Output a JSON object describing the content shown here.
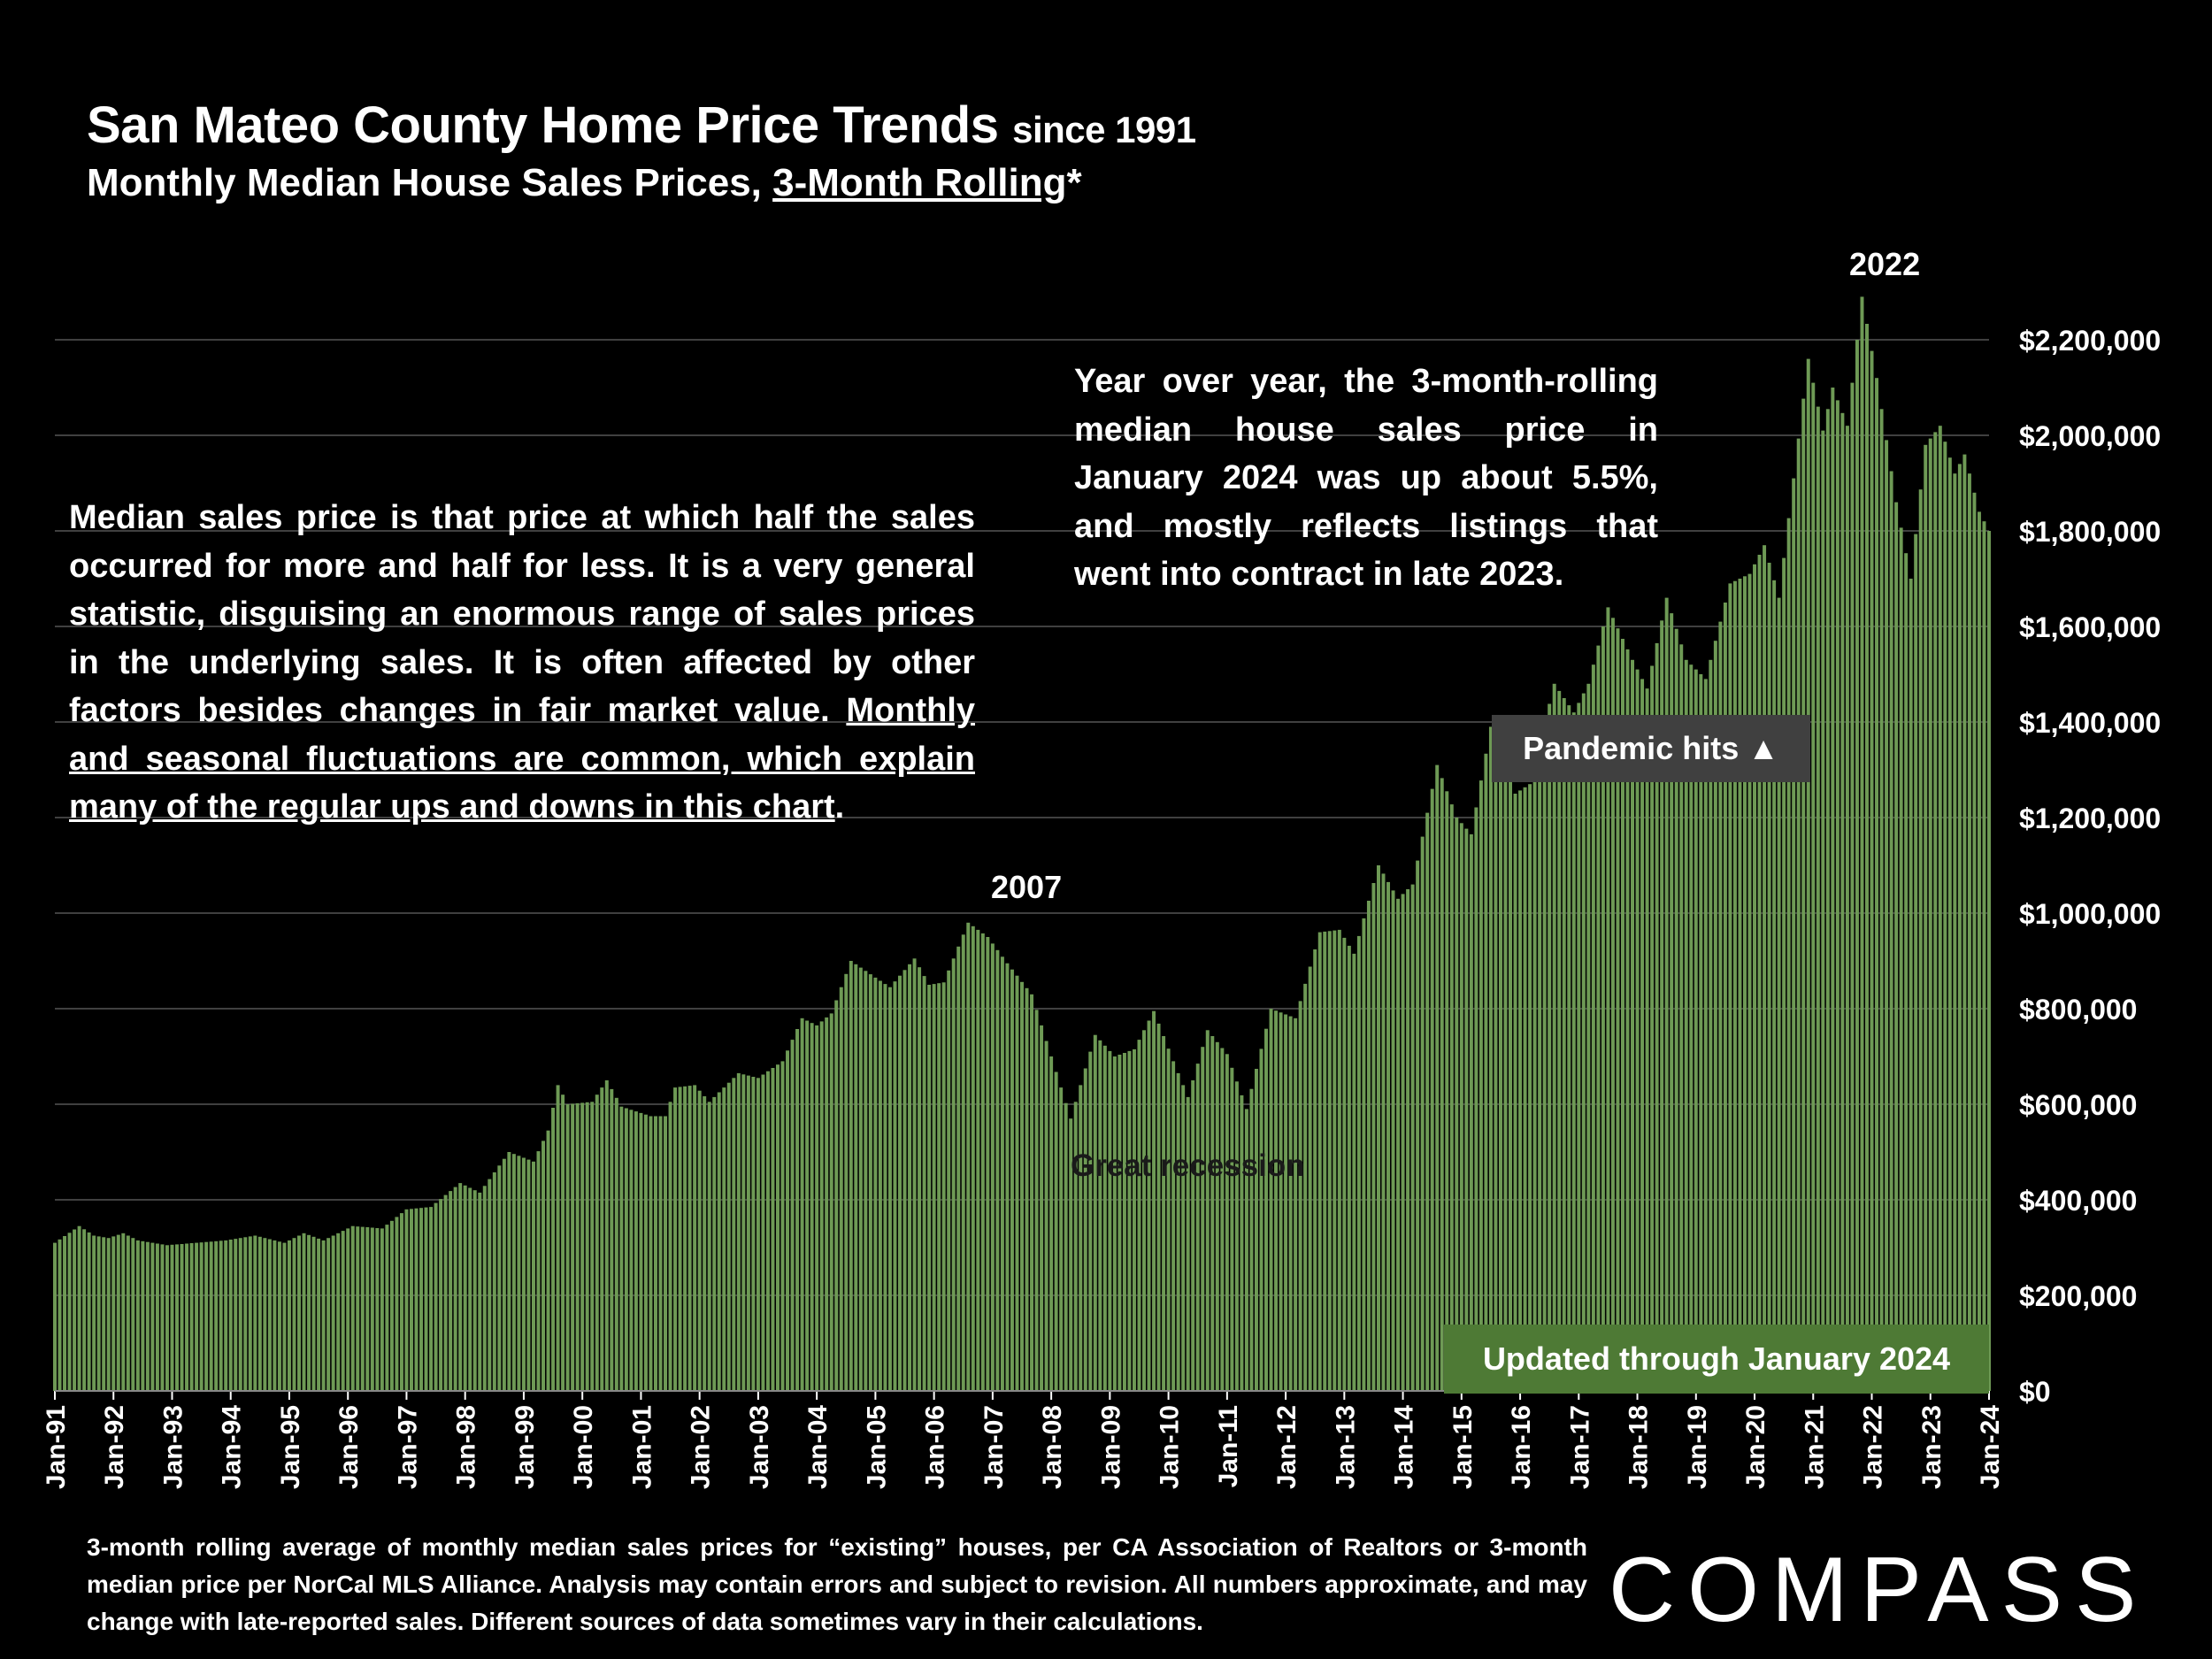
{
  "header": {
    "title": "San Mateo County Home Price Trends",
    "title_suffix": "since 1991",
    "subtitle_prefix": "Monthly Median House Sales Prices, ",
    "subtitle_underlined": "3-Month Rolling",
    "subtitle_suffix": "*"
  },
  "annotations": {
    "note_left_plain": "Median sales price is that price at which half the sales occurred for more and half for less. It is a very general statistic, disguising an enormous range of sales prices in the underlying sales. It is often affected by other factors besides changes in fair market value. ",
    "note_left_underlined": "Monthly and seasonal fluctuations are common, which explain many of the regular ups and downs in this chart",
    "note_left_end": ".",
    "note_right": "Year over year, the 3-month-rolling median house sales price in January 2024 was up about 5.5%, and mostly reflects listings that went into contract in late 2023.",
    "label_2007": "2007",
    "label_2022": "2022",
    "label_recession": "Great recession",
    "pandemic": "Pandemic hits ▲",
    "updated": "Updated through January 2024"
  },
  "footnote": "3-month rolling average of monthly median sales prices for “existing” houses, per CA Association of Realtors or 3-month median price per NorCal MLS Alliance. Analysis may contain errors and subject to revision. All numbers approximate, and may change with late-reported sales. Different sources of data sometimes vary in their calculations.",
  "logo": "COMPASS",
  "colors": {
    "bar": "#6e9a55",
    "background": "#000000",
    "grid": "#555555",
    "updated_box": "#4e7a35",
    "pandemic_box": "#404040"
  },
  "chart_data": {
    "type": "bar",
    "title": "San Mateo County Home Price Trends since 1991",
    "subtitle": "Monthly Median House Sales Prices, 3-Month Rolling*",
    "ylim": [
      0,
      2200000
    ],
    "y_ticks": [
      0,
      200000,
      400000,
      600000,
      800000,
      1000000,
      1200000,
      1400000,
      1600000,
      1800000,
      2000000,
      2200000
    ],
    "y_tick_labels": [
      "$0",
      "$200,000",
      "$400,000",
      "$600,000",
      "$800,000",
      "$1,000,000",
      "$1,200,000",
      "$1,400,000",
      "$1,600,000",
      "$1,800,000",
      "$2,000,000",
      "$2,200,000"
    ],
    "x_tick_labels": [
      "Jan-91",
      "Jan-92",
      "Jan-93",
      "Jan-94",
      "Jan-95",
      "Jan-96",
      "Jan-97",
      "Jan-98",
      "Jan-99",
      "Jan-00",
      "Jan-01",
      "Jan-02",
      "Jan-03",
      "Jan-04",
      "Jan-05",
      "Jan-06",
      "Jan-07",
      "Jan-08",
      "Jan-09",
      "Jan-10",
      "Jan-11",
      "Jan-12",
      "Jan-13",
      "Jan-14",
      "Jan-15",
      "Jan-16",
      "Jan-17",
      "Jan-18",
      "Jan-19",
      "Jan-20",
      "Jan-21",
      "Jan-22",
      "Jan-23",
      "Jan-24"
    ],
    "grid": true,
    "series": [
      {
        "start": "1991-01",
        "frequency": "monthly",
        "anchors": [
          [
            "1991-01",
            310000
          ],
          [
            "1991-06",
            345000
          ],
          [
            "1991-09",
            325000
          ],
          [
            "1991-12",
            320000
          ],
          [
            "1992-03",
            330000
          ],
          [
            "1992-06",
            315000
          ],
          [
            "1992-12",
            305000
          ],
          [
            "1993-06",
            310000
          ],
          [
            "1993-12",
            315000
          ],
          [
            "1994-06",
            325000
          ],
          [
            "1994-12",
            310000
          ],
          [
            "1995-04",
            330000
          ],
          [
            "1995-08",
            315000
          ],
          [
            "1996-02",
            345000
          ],
          [
            "1996-08",
            340000
          ],
          [
            "1997-01",
            380000
          ],
          [
            "1997-06",
            385000
          ],
          [
            "1997-12",
            435000
          ],
          [
            "1998-04",
            415000
          ],
          [
            "1998-10",
            500000
          ],
          [
            "1999-03",
            480000
          ],
          [
            "1999-06",
            545000
          ],
          [
            "1999-08",
            640000
          ],
          [
            "1999-10",
            600000
          ],
          [
            "2000-03",
            605000
          ],
          [
            "2000-06",
            650000
          ],
          [
            "2000-09",
            595000
          ],
          [
            "2001-03",
            575000
          ],
          [
            "2001-06",
            575000
          ],
          [
            "2001-08",
            635000
          ],
          [
            "2001-12",
            640000
          ],
          [
            "2002-03",
            605000
          ],
          [
            "2002-09",
            665000
          ],
          [
            "2003-01",
            655000
          ],
          [
            "2003-06",
            690000
          ],
          [
            "2003-10",
            780000
          ],
          [
            "2004-01",
            765000
          ],
          [
            "2004-04",
            790000
          ],
          [
            "2004-08",
            900000
          ],
          [
            "2005-01",
            865000
          ],
          [
            "2005-04",
            845000
          ],
          [
            "2005-09",
            905000
          ],
          [
            "2005-12",
            850000
          ],
          [
            "2006-03",
            855000
          ],
          [
            "2006-08",
            980000
          ],
          [
            "2006-12",
            950000
          ],
          [
            "2007-04",
            895000
          ],
          [
            "2007-09",
            830000
          ],
          [
            "2008-01",
            700000
          ],
          [
            "2008-05",
            570000
          ],
          [
            "2008-10",
            745000
          ],
          [
            "2009-02",
            700000
          ],
          [
            "2009-06",
            715000
          ],
          [
            "2009-10",
            795000
          ],
          [
            "2010-02",
            690000
          ],
          [
            "2010-05",
            615000
          ],
          [
            "2010-09",
            755000
          ],
          [
            "2011-01",
            705000
          ],
          [
            "2011-05",
            590000
          ],
          [
            "2011-10",
            800000
          ],
          [
            "2012-03",
            780000
          ],
          [
            "2012-08",
            960000
          ],
          [
            "2012-12",
            965000
          ],
          [
            "2013-03",
            915000
          ],
          [
            "2013-08",
            1100000
          ],
          [
            "2013-12",
            1030000
          ],
          [
            "2014-03",
            1060000
          ],
          [
            "2014-08",
            1310000
          ],
          [
            "2014-12",
            1200000
          ],
          [
            "2015-03",
            1165000
          ],
          [
            "2015-07",
            1390000
          ],
          [
            "2015-12",
            1250000
          ],
          [
            "2016-03",
            1270000
          ],
          [
            "2016-08",
            1480000
          ],
          [
            "2016-12",
            1420000
          ],
          [
            "2017-03",
            1480000
          ],
          [
            "2017-07",
            1640000
          ],
          [
            "2017-12",
            1530000
          ],
          [
            "2018-03",
            1470000
          ],
          [
            "2018-07",
            1660000
          ],
          [
            "2018-11",
            1530000
          ],
          [
            "2019-03",
            1490000
          ],
          [
            "2019-08",
            1690000
          ],
          [
            "2019-12",
            1710000
          ],
          [
            "2020-03",
            1770000
          ],
          [
            "2020-06",
            1660000
          ],
          [
            "2020-12",
            2160000
          ],
          [
            "2021-03",
            2010000
          ],
          [
            "2021-05",
            2100000
          ],
          [
            "2021-08",
            2020000
          ],
          [
            "2021-11",
            2290000
          ],
          [
            "2022-02",
            2120000
          ],
          [
            "2022-06",
            1860000
          ],
          [
            "2022-09",
            1700000
          ],
          [
            "2022-12",
            1980000
          ],
          [
            "2023-03",
            2020000
          ],
          [
            "2023-06",
            1920000
          ],
          [
            "2023-08",
            1960000
          ],
          [
            "2023-11",
            1840000
          ],
          [
            "2024-01",
            1800000
          ]
        ]
      }
    ]
  }
}
